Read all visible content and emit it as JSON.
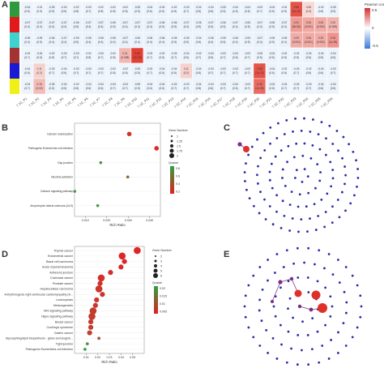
{
  "panels": {
    "A": {
      "letter": "A",
      "legend_title": "Pearson corr",
      "legend_ticks": [
        "0.5",
        "0",
        "-0.5"
      ],
      "color_bar": [
        "#2e9a3e",
        "#e01a1a",
        "#3fd3cf",
        "#a33333",
        "#1a1ad0",
        "#f0f018"
      ],
      "col_labels": [
        "7.1C_P1",
        "7.1C_P2",
        "7.1C_P3",
        "7.1C_P4",
        "7.1C_P5",
        "7.1C_P6",
        "7.1C_P7",
        "7.1C_P8",
        "7.1C_P9",
        "7.1C_P10",
        "7.1C_P11",
        "7.1C_P12",
        "7.1C_P13",
        "7.1C_P14",
        "7.1C_P15",
        "7.1C_P16",
        "7.1C_P17",
        "7.1C_P18",
        "7.1C_P19",
        "7.1C_P20",
        "7.1C_P21",
        "7.1C_P22",
        "7.1C_P23",
        "7.1C_P24",
        "7.1C_P25",
        "7.1C_P26"
      ],
      "rows": [
        {
          "top": [
            "-0.04",
            "-0.01",
            "-0.05",
            "-0.04",
            "-0.02",
            "-0.03",
            "-0.02",
            "-0.02",
            "-0.02",
            "-0.05",
            "-0.04",
            "-0.04",
            "-0.02",
            "-0.03",
            "-0.04",
            "-0.04",
            "-0.05",
            "-0.04",
            "-0.04",
            "-0.03",
            "-0.04",
            "-0.02",
            "0.58",
            "0.08",
            "-0.02",
            "-0.05"
          ],
          "bot": [
            "(0.6)",
            "(0.9)",
            "(0.5)",
            "(0.6)",
            "(0.8)",
            "(0.7)",
            "(0.8)",
            "(0.8)",
            "(0.8)",
            "(0.5)",
            "(0.6)",
            "(0.6)",
            "(0.8)",
            "(0.7)",
            "(0.6)",
            "(0.6)",
            "(0.5)",
            "(0.6)",
            "(0.6)",
            "(0.7)",
            "(0.6)",
            "(0.8)",
            "(1e-12)",
            "(0.3)",
            "(0.8)",
            "(0.5)"
          ]
        },
        {
          "top": [
            "-0.07",
            "-0.07",
            "-0.07",
            "-0.07",
            "-0.06",
            "-0.07",
            "-0.07",
            "-0.06",
            "-0.07",
            "-0.07",
            "-0.07",
            "-0.06",
            "-0.06",
            "-0.07",
            "-0.06",
            "-0.07",
            "-0.06",
            "-0.07",
            "-0.06",
            "-0.07",
            "-0.06",
            "-0.07",
            "0.31",
            "0.26",
            "0.25",
            "0.22"
          ],
          "bot": [
            "(0.4)",
            "(0.4)",
            "(0.4)",
            "(0.4)",
            "(0.5)",
            "(0.4)",
            "(0.4)",
            "(0.5)",
            "(0.4)",
            "(0.4)",
            "(0.4)",
            "(0.5)",
            "(0.5)",
            "(0.4)",
            "(0.5)",
            "(0.4)",
            "(0.5)",
            "(0.4)",
            "(0.5)",
            "(0.4)",
            "(0.5)",
            "(0.4)",
            "(9e-05)",
            "(0.001)",
            "(0.002)",
            "(0.006)"
          ]
        },
        {
          "top": [
            "-0.06",
            "-0.05",
            "-0.06",
            "-0.07",
            "-0.05",
            "-0.06",
            "-0.06",
            "-0.06",
            "-0.07",
            "-0.06",
            "-0.06",
            "-0.06",
            "-0.05",
            "-0.05",
            "-0.04",
            "-0.06",
            "-0.05",
            "-0.06",
            "-0.05",
            "-0.07",
            "-0.05",
            "-0.06",
            "0.25",
            "0.26",
            "0.25",
            "0.34"
          ],
          "bot": [
            "(0.4)",
            "(0.5)",
            "(0.4)",
            "(0.4)",
            "(0.5)",
            "(0.4)",
            "(0.4)",
            "(0.4)",
            "(0.4)",
            "(0.4)",
            "(0.4)",
            "(0.4)",
            "(0.5)",
            "(0.5)",
            "(0.6)",
            "(0.4)",
            "(0.5)",
            "(0.4)",
            "(0.5)",
            "(0.4)",
            "(0.5)",
            "(0.4)",
            "(0.002)",
            "(0.001)",
            "(0.002)",
            "(1e-05)"
          ]
        },
        {
          "top": [
            "-0.03",
            "-0.04",
            "-0.02",
            "-0.03",
            "-0.03",
            "-0.02",
            "-0.03",
            "-0.02",
            "0.21",
            "0.65",
            "-0.03",
            "-0.02",
            "-0.03",
            "-0.04",
            "-0.03",
            "-0.04",
            "-0.03",
            "-0.04",
            "-0.03",
            "-0.05",
            "-0.04",
            "-0.02",
            "-0.02",
            "-0.04",
            "-0.04",
            "-0.04"
          ],
          "bot": [
            "(0.7)",
            "(0.6)",
            "(0.8)",
            "(0.7)",
            "(0.7)",
            "(0.8)",
            "(0.7)",
            "(0.8)",
            "(0.008)",
            "(1e-19)",
            "(0.7)",
            "(0.8)",
            "(0.7)",
            "(0.6)",
            "(0.7)",
            "(0.6)",
            "(0.7)",
            "(0.6)",
            "(0.7)",
            "(0.5)",
            "(0.6)",
            "(0.8)",
            "(0.8)",
            "(0.6)",
            "(0.6)",
            "(0.6)"
          ]
        },
        {
          "top": [
            "-0.04",
            "0.11",
            "-0.03",
            "-0.04",
            "-0.03",
            "-0.03",
            "-0.03",
            "-0.02",
            "-0.02",
            "-0.05",
            "-0.03",
            "-0.04",
            "-0.04",
            "0.11",
            "-0.04",
            "-0.03",
            "-0.03",
            "-0.03",
            "-0.03",
            "0.58",
            "-0.04",
            "-0.02",
            "-0.03",
            "-0.02",
            "-0.04",
            "-0.03"
          ],
          "bot": [
            "(0.6)",
            "(0.2)",
            "(0.7)",
            "(0.6)",
            "(0.7)",
            "(0.7)",
            "(0.7)",
            "(0.8)",
            "(0.8)",
            "(0.5)",
            "(0.7)",
            "(0.6)",
            "(0.6)",
            "(0.2)",
            "(0.6)",
            "(0.7)",
            "(0.7)",
            "(0.7)",
            "(0.7)",
            "(1e-12)",
            "(0.6)",
            "(0.8)",
            "(0.7)",
            "(0.8)",
            "(0.6)",
            "(0.7)"
          ]
        },
        {
          "top": [
            "-0.03",
            "0.19",
            "-0.05",
            "-0.04",
            "-0.02",
            "-0.04",
            "-0.04",
            "-0.03",
            "-0.03",
            "-0.05",
            "-0.04",
            "-0.04",
            "-0.03",
            "-0.03",
            "-0.04",
            "-0.04",
            "-0.03",
            "-0.04",
            "-0.03",
            "0.49",
            "-0.04",
            "-0.03",
            "-0.03",
            "-0.03",
            "-0.04",
            "-0.04"
          ],
          "bot": [
            "(0.7)",
            "(0.02)",
            "(0.5)",
            "(0.6)",
            "(0.8)",
            "(0.6)",
            "(0.6)",
            "(0.7)",
            "(0.7)",
            "(0.5)",
            "(0.6)",
            "(0.6)",
            "(0.7)",
            "(0.7)",
            "(0.6)",
            "(0.6)",
            "(0.7)",
            "(0.6)",
            "(0.7)",
            "(1e-09)",
            "(0.6)",
            "(0.7)",
            "(0.7)",
            "(0.7)",
            "(0.6)",
            "(0.6)"
          ]
        }
      ]
    },
    "B": {
      "letter": "B",
      "xlabel": "Rich Ratio",
      "x_ticks": [
        "0.010",
        "0.020",
        "0.030",
        "0.040"
      ],
      "categories": [
        "Calcium reabsorption",
        "Pathogenic Escherichia coli infection",
        "Gap junction",
        "Nicotine addiction",
        "Calcium signaling pathway",
        "Amyotrophic lateral sclerosis (ALS)"
      ],
      "size_title": "Gene Number",
      "size_ticks": [
        "1",
        "1.25",
        "1.5",
        "1.75",
        "2"
      ],
      "color_title": "Qvalue",
      "color_ticks": [
        "0.8",
        "0.6",
        "0.4",
        "0.2"
      ]
    },
    "C": {
      "letter": "C"
    },
    "D": {
      "letter": "D",
      "xlabel": "Rich Ratio",
      "x_ticks": [
        "0.01",
        "0.02",
        "0.03",
        "0.04",
        "0.05"
      ],
      "categories": [
        "Thyroid cancer",
        "Endometrial cancer",
        "Basal cell carcinoma",
        "Acute myeloid leukemia",
        "Adherens junction",
        "Colorectal cancer",
        "Prostate cancer",
        "Hepatocellular carcinoma",
        "Arrhythmogenic right ventricular cardiomyopathy (A...",
        "Leukocytosis",
        "Melanogenesis",
        "Wnt signaling pathway",
        "Hippo signaling pathway",
        "Breast cancer",
        "Cushing's syndrome",
        "Gastric cancer",
        "Glycosphingolipid biosynthesis - globo and isoglob...",
        "Tight junction",
        "Pathogenic Escherichia coli infection"
      ],
      "size_title": "Gene Number",
      "size_ticks": [
        "2",
        "3",
        "4",
        "5",
        "6"
      ],
      "color_title": "Qvalue",
      "color_ticks": [
        "0.02",
        "0.015",
        "0.01",
        "0.005"
      ]
    },
    "E": {
      "letter": "E"
    }
  },
  "chart_data": [
    {
      "type": "scatter",
      "panel": "B",
      "xlabel": "Rich Ratio",
      "categories": [
        "Calcium reabsorption",
        "Pathogenic Escherichia coli infection",
        "Gap junction",
        "Nicotine addiction",
        "Calcium signaling pathway",
        "Amyotrophic lateral sclerosis (ALS)"
      ],
      "x": [
        0.0305,
        0.0432,
        0.0172,
        0.0298,
        0.0051,
        0.0158
      ],
      "size": [
        2,
        2,
        1,
        1,
        1,
        1
      ],
      "qvalue": [
        0.18,
        0.12,
        0.62,
        0.45,
        0.72,
        0.7
      ],
      "xlim": [
        0.005,
        0.045
      ]
    },
    {
      "type": "scatter",
      "panel": "D",
      "xlabel": "Rich Ratio",
      "categories": [
        "Thyroid cancer",
        "Endometrial cancer",
        "Basal cell carcinoma",
        "Acute myeloid leukemia",
        "Adherens junction",
        "Colorectal cancer",
        "Prostate cancer",
        "Hepatocellular carcinoma",
        "Arrhythmogenic right ventricular cardiomyopathy (A...",
        "Leukocytosis",
        "Melanogenesis",
        "Wnt signaling pathway",
        "Hippo signaling pathway",
        "Breast cancer",
        "Cushing's syndrome",
        "Gastric cancer",
        "Glycosphingolipid biosynthesis - globo and isoglob...",
        "Tight junction",
        "Pathogenic Escherichia coli infection"
      ],
      "x": [
        0.054,
        0.041,
        0.043,
        0.04,
        0.031,
        0.023,
        0.022,
        0.021,
        0.024,
        0.019,
        0.018,
        0.016,
        0.015,
        0.014,
        0.014,
        0.013,
        0.021,
        0.011,
        0.009
      ],
      "size": [
        4,
        4,
        3,
        3,
        3,
        4,
        3,
        4,
        3,
        3,
        3,
        4,
        4,
        3,
        3,
        3,
        2,
        2,
        2
      ],
      "qvalue": [
        0.002,
        0.002,
        0.002,
        0.002,
        0.003,
        0.003,
        0.003,
        0.004,
        0.004,
        0.004,
        0.004,
        0.005,
        0.005,
        0.005,
        0.005,
        0.006,
        0.01,
        0.019,
        0.021
      ],
      "xlim": [
        0.0,
        0.06
      ]
    }
  ]
}
